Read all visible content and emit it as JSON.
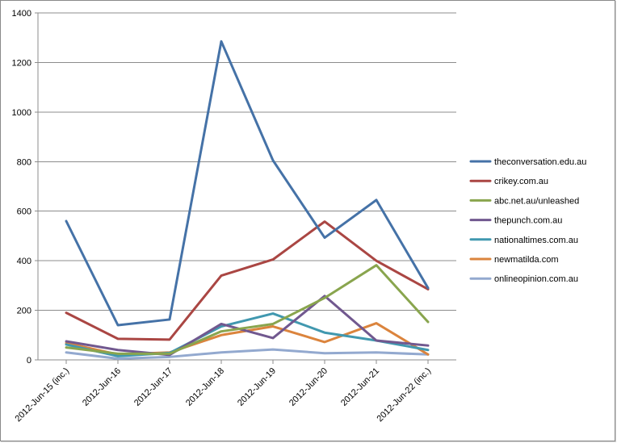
{
  "chart_data": {
    "type": "line",
    "title": "",
    "xlabel": "",
    "ylabel": "",
    "ylim": [
      0,
      1400
    ],
    "yticks": [
      0,
      200,
      400,
      600,
      800,
      1000,
      1200,
      1400
    ],
    "grid": "horizontal",
    "legend_position": "right",
    "categories": [
      "2012-Jun-15 (inc.)",
      "2012-Jun-16",
      "2012-Jun-17",
      "2012-Jun-18",
      "2012-Jun-19",
      "2012-Jun-20",
      "2012-Jun-21",
      "2012-Jun-22 (inc.)"
    ],
    "series": [
      {
        "name": "theconversation.edu.au",
        "color": "#4572A7",
        "values": [
          560,
          140,
          163,
          1285,
          805,
          493,
          645,
          290
        ]
      },
      {
        "name": "crikey.com.au",
        "color": "#AA4643",
        "values": [
          190,
          85,
          82,
          340,
          405,
          558,
          400,
          285
        ]
      },
      {
        "name": "abc.net.au/unleashed",
        "color": "#89A54E",
        "values": [
          50,
          25,
          25,
          115,
          145,
          250,
          382,
          153
        ]
      },
      {
        "name": "thepunch.com.au",
        "color": "#71588F",
        "values": [
          75,
          40,
          20,
          145,
          88,
          258,
          78,
          58
        ]
      },
      {
        "name": "nationaltimes.com.au",
        "color": "#4198AF",
        "values": [
          62,
          15,
          28,
          135,
          187,
          110,
          78,
          40
        ]
      },
      {
        "name": "newmatilda.com",
        "color": "#DB843D",
        "values": [
          68,
          22,
          30,
          100,
          135,
          72,
          148,
          22
        ]
      },
      {
        "name": "onlineopinion.com.au",
        "color": "#93A9CF",
        "values": [
          30,
          5,
          12,
          30,
          42,
          27,
          30,
          22
        ]
      }
    ]
  }
}
